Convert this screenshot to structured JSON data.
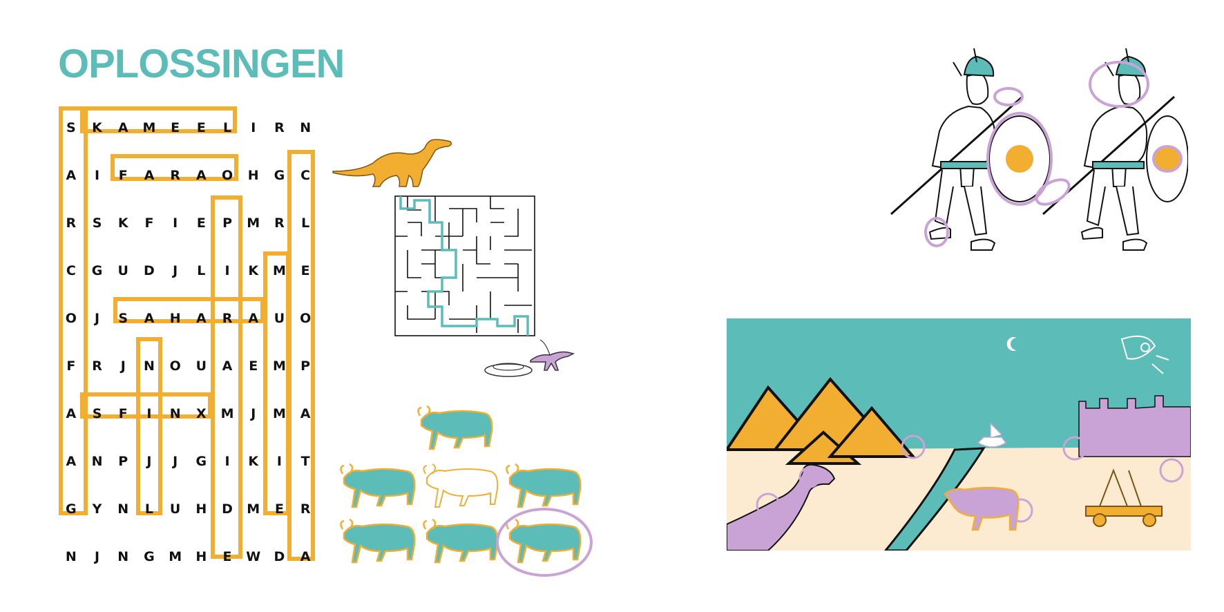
{
  "title": "OPLOSSINGEN",
  "colors": {
    "teal": "#5bbcb8",
    "orange": "#f2ae30",
    "lilac": "#c9a3d6",
    "sand": "#fcebd0"
  },
  "wordsearch": {
    "rows": [
      [
        "S",
        "K",
        "A",
        "M",
        "E",
        "E",
        "L",
        "I",
        "R",
        "N"
      ],
      [
        "A",
        "I",
        "F",
        "A",
        "R",
        "A",
        "O",
        "H",
        "G",
        "C"
      ],
      [
        "R",
        "S",
        "K",
        "F",
        "I",
        "E",
        "P",
        "M",
        "R",
        "L"
      ],
      [
        "C",
        "G",
        "U",
        "D",
        "J",
        "L",
        "I",
        "K",
        "M",
        "E"
      ],
      [
        "O",
        "J",
        "S",
        "A",
        "H",
        "A",
        "R",
        "A",
        "U",
        "O"
      ],
      [
        "F",
        "R",
        "J",
        "N",
        "O",
        "U",
        "A",
        "E",
        "M",
        "P"
      ],
      [
        "A",
        "S",
        "F",
        "I",
        "N",
        "X",
        "M",
        "J",
        "M",
        "A"
      ],
      [
        "A",
        "N",
        "P",
        "J",
        "J",
        "G",
        "I",
        "K",
        "I",
        "T"
      ],
      [
        "G",
        "Y",
        "N",
        "L",
        "U",
        "H",
        "D",
        "M",
        "E",
        "R"
      ],
      [
        "N",
        "J",
        "N",
        "G",
        "M",
        "H",
        "E",
        "W",
        "D",
        "A"
      ]
    ]
  },
  "maze": {
    "label": "maze-puzzle"
  },
  "cattle": {
    "count": 7,
    "odd_one_index": 6
  },
  "icons": {
    "dinosaur": "dinosaur-icon",
    "small_dinosaur": "small-dinosaur-icon",
    "rocket": "rocket-icon",
    "moon": "crescent-moon-icon",
    "ship": "viking-ship-icon"
  }
}
